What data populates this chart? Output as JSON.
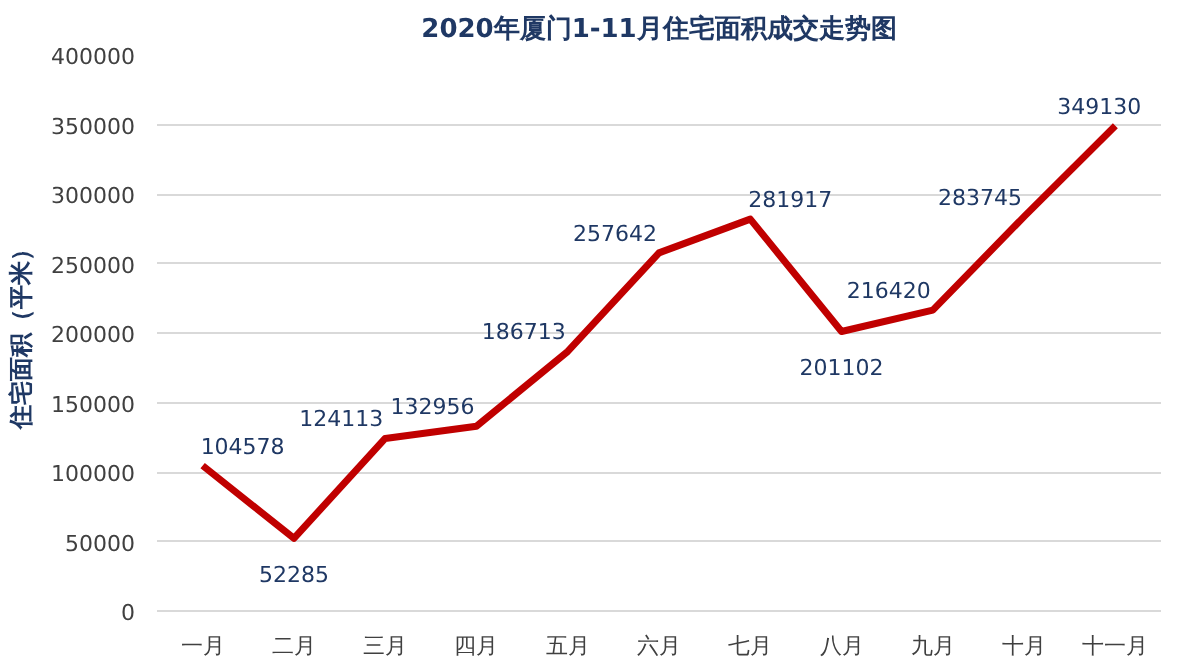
{
  "chart_data": {
    "type": "line",
    "title": "2020年厦门1-11月住宅面积成交走势图",
    "ylabel": "住宅面积（平米）",
    "categories": [
      "一月",
      "二月",
      "三月",
      "四月",
      "五月",
      "六月",
      "七月",
      "八月",
      "九月",
      "十月",
      "十一月"
    ],
    "series": [
      {
        "color": "#c00000",
        "values": [
          104578,
          52285,
          124113,
          132956,
          186713,
          257642,
          281917,
          201102,
          216420,
          283745,
          349130
        ]
      }
    ],
    "ylim": [
      0,
      400000
    ],
    "yticks": [
      0,
      50000,
      100000,
      150000,
      200000,
      250000,
      300000,
      350000,
      400000
    ],
    "grid": "y",
    "data_labels": true,
    "marker": "none",
    "line_style": "solid"
  }
}
